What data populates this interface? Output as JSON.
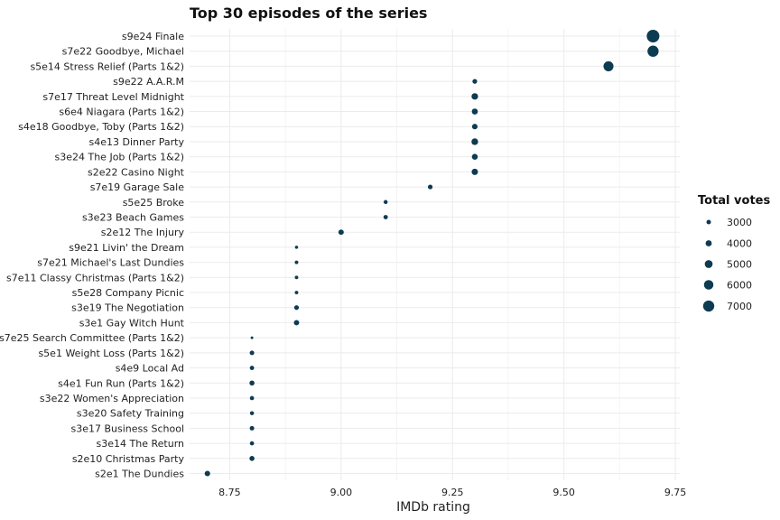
{
  "chart_data": {
    "type": "scatter",
    "title": "Top 30 episodes of the series",
    "xlabel": "IMDb rating",
    "ylabel": "",
    "xlim": [
      8.66,
      9.76
    ],
    "xticks": [
      8.75,
      9.0,
      9.25,
      9.5,
      9.75
    ],
    "xtick_labels": [
      "8.75",
      "9.00",
      "9.25",
      "9.50",
      "9.75"
    ],
    "grid": true,
    "point_color": "#0d3b52",
    "legend": {
      "title": "Total votes",
      "placement": "right",
      "values": [
        3000,
        4000,
        5000,
        6000,
        7000
      ],
      "labels": [
        "3000",
        "4000",
        "5000",
        "6000",
        "7000"
      ]
    },
    "episodes": [
      {
        "label": "s9e24 Finale",
        "rating": 9.7,
        "votes": 7900
      },
      {
        "label": "s7e22 Goodbye, Michael",
        "rating": 9.7,
        "votes": 7000
      },
      {
        "label": "s5e14 Stress Relief (Parts 1&2)",
        "rating": 9.6,
        "votes": 6300
      },
      {
        "label": "s9e22 A.A.R.M",
        "rating": 9.3,
        "votes": 3100
      },
      {
        "label": "s7e17 Threat Level Midnight",
        "rating": 9.3,
        "votes": 4200
      },
      {
        "label": "s6e4 Niagara (Parts 1&2)",
        "rating": 9.3,
        "votes": 3900
      },
      {
        "label": "s4e18 Goodbye, Toby (Parts 1&2)",
        "rating": 9.3,
        "votes": 3600
      },
      {
        "label": "s4e13 Dinner Party",
        "rating": 9.3,
        "votes": 4300
      },
      {
        "label": "s3e24 The Job (Parts 1&2)",
        "rating": 9.3,
        "votes": 3800
      },
      {
        "label": "s2e22 Casino Night",
        "rating": 9.3,
        "votes": 4100
      },
      {
        "label": "s7e19 Garage Sale",
        "rating": 9.2,
        "votes": 3100
      },
      {
        "label": "s5e25 Broke",
        "rating": 9.1,
        "votes": 2700
      },
      {
        "label": "s3e23 Beach Games",
        "rating": 9.1,
        "votes": 2900
      },
      {
        "label": "s2e12 The Injury",
        "rating": 9.0,
        "votes": 3500
      },
      {
        "label": "s9e21 Livin' the Dream",
        "rating": 8.9,
        "votes": 2200
      },
      {
        "label": "s7e21 Michael's Last Dundies",
        "rating": 8.9,
        "votes": 2400
      },
      {
        "label": "s7e11 Classy Christmas (Parts 1&2)",
        "rating": 8.9,
        "votes": 2400
      },
      {
        "label": "s5e28 Company Picnic",
        "rating": 8.9,
        "votes": 2400
      },
      {
        "label": "s3e19 The Negotiation",
        "rating": 8.9,
        "votes": 3100
      },
      {
        "label": "s3e1 Gay Witch Hunt",
        "rating": 8.9,
        "votes": 3500
      },
      {
        "label": "s7e25 Search Committee (Parts 1&2)",
        "rating": 8.8,
        "votes": 1900
      },
      {
        "label": "s5e1 Weight Loss (Parts 1&2)",
        "rating": 8.8,
        "votes": 3000
      },
      {
        "label": "s4e9 Local Ad",
        "rating": 8.8,
        "votes": 2900
      },
      {
        "label": "s4e1 Fun Run (Parts 1&2)",
        "rating": 8.8,
        "votes": 3300
      },
      {
        "label": "s3e22 Women's Appreciation",
        "rating": 8.8,
        "votes": 2800
      },
      {
        "label": "s3e20 Safety Training",
        "rating": 8.8,
        "votes": 2700
      },
      {
        "label": "s3e17 Business School",
        "rating": 8.8,
        "votes": 3000
      },
      {
        "label": "s3e14 The Return",
        "rating": 8.8,
        "votes": 2800
      },
      {
        "label": "s2e10 Christmas Party",
        "rating": 8.8,
        "votes": 3300
      },
      {
        "label": "s2e1 The Dundies",
        "rating": 8.7,
        "votes": 3600
      }
    ]
  }
}
